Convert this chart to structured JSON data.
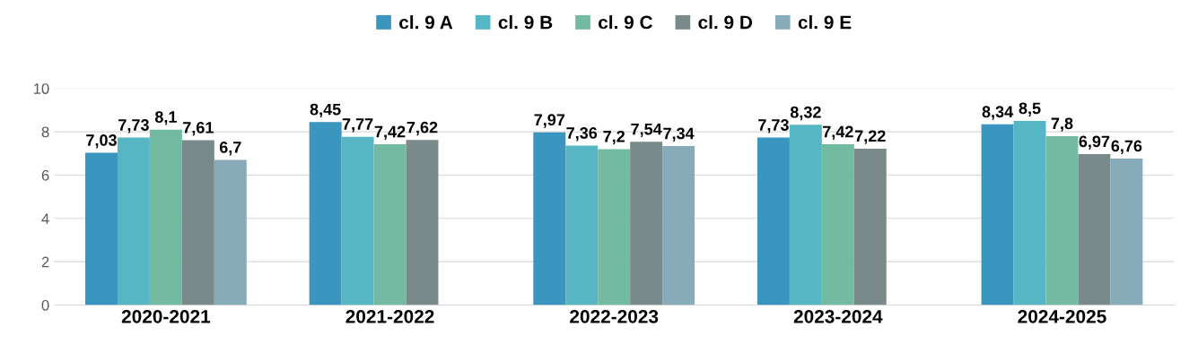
{
  "chart_data": {
    "type": "bar",
    "categories": [
      "2020-2021",
      "2021-2022",
      "2022-2023",
      "2023-2024",
      "2024-2025"
    ],
    "series": [
      {
        "name": "cl. 9 A",
        "color": "#3a95bf",
        "values": [
          7.03,
          8.45,
          7.97,
          7.73,
          8.34
        ],
        "value_labels": [
          "7,03",
          "8,45",
          "7,97",
          "7,73",
          "8,34"
        ]
      },
      {
        "name": "cl. 9 B",
        "color": "#57b6c4",
        "values": [
          7.73,
          7.77,
          7.36,
          8.32,
          8.5
        ],
        "value_labels": [
          "7,73",
          "7,77",
          "7,36",
          "8,32",
          "8,5"
        ]
      },
      {
        "name": "cl. 9 C",
        "color": "#72bba2",
        "values": [
          8.1,
          7.42,
          7.2,
          7.42,
          7.8
        ],
        "value_labels": [
          "8,1",
          "7,42",
          "7,2",
          "7,42",
          "7,8"
        ]
      },
      {
        "name": "cl. 9 D",
        "color": "#7a8a8a",
        "values": [
          7.61,
          7.62,
          7.54,
          7.22,
          6.97
        ],
        "value_labels": [
          "7,61",
          "7,62",
          "7,54",
          "7,22",
          "6,97"
        ]
      },
      {
        "name": "cl. 9 E",
        "color": "#87abb8",
        "values": [
          6.7,
          null,
          7.34,
          null,
          6.76
        ],
        "value_labels": [
          "6,7",
          null,
          "7,34",
          null,
          "6,76"
        ]
      }
    ],
    "ylim": [
      0,
      10
    ],
    "yticks": [
      0,
      2,
      4,
      6,
      8,
      10
    ],
    "grid": "y",
    "legend": "top"
  }
}
